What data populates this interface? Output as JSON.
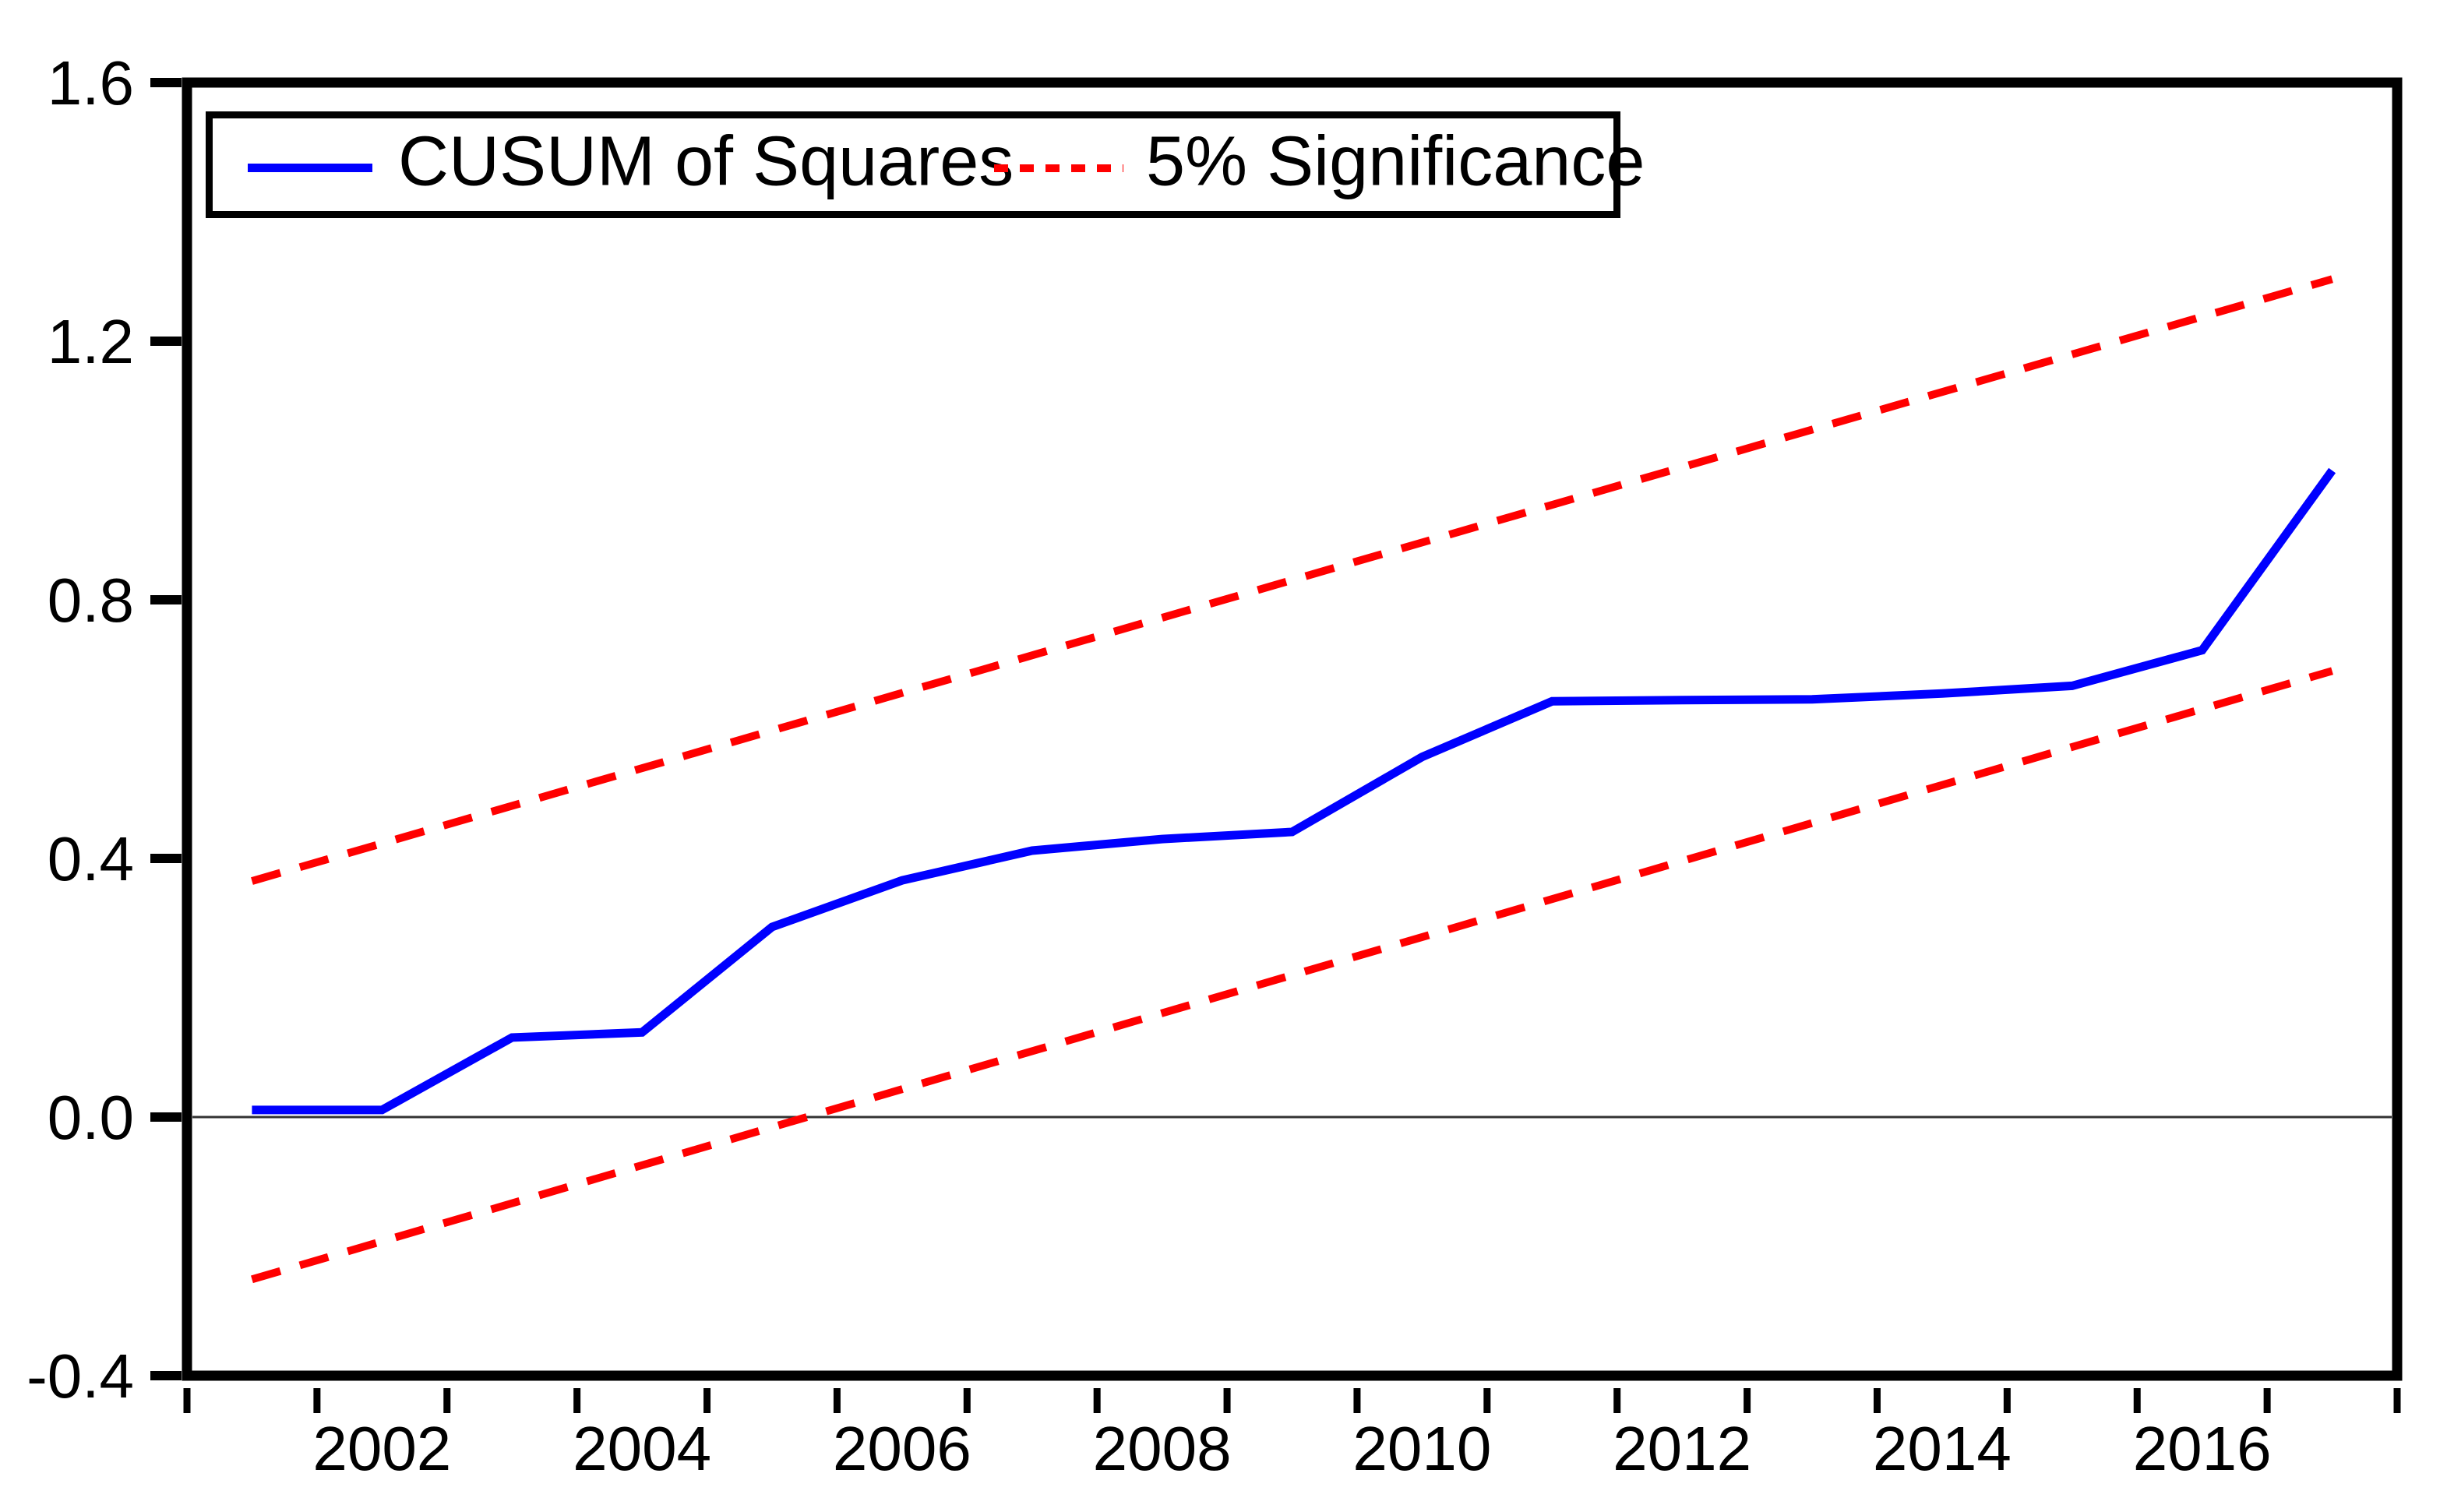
{
  "chart_data": {
    "type": "line",
    "title": "",
    "xlabel": "",
    "ylabel": "",
    "x": [
      2001,
      2002,
      2003,
      2004,
      2005,
      2006,
      2007,
      2008,
      2009,
      2010,
      2011,
      2012,
      2013,
      2014,
      2015,
      2016,
      2017
    ],
    "series": [
      {
        "name": "CUSUM of Squares",
        "color": "#0000ff",
        "style": "solid",
        "values": [
          0.011,
          0.011,
          0.123,
          0.131,
          0.294,
          0.366,
          0.412,
          0.43,
          0.441,
          0.557,
          0.643,
          0.645,
          0.646,
          0.655,
          0.667,
          0.722,
          1.0
        ]
      },
      {
        "name": "5% Significance",
        "color": "#ff0000",
        "style": "dashed",
        "lines": [
          {
            "x": [
              2001,
              2017
            ],
            "y": [
              -0.251,
              0.69
            ]
          },
          {
            "x": [
              2001,
              2017
            ],
            "y": [
              0.365,
              1.296
            ]
          }
        ]
      }
    ],
    "ylim": [
      -0.4,
      1.6
    ],
    "yticks": [
      -0.4,
      0.0,
      0.4,
      0.8,
      1.2,
      1.6
    ],
    "ytick_labels": [
      "-0.4",
      "0.0",
      "0.4",
      "0.8",
      "1.2",
      "1.6"
    ],
    "xtick_boundaries": [
      2001,
      2002,
      2003,
      2004,
      2005,
      2006,
      2007,
      2008,
      2009,
      2010,
      2011,
      2012,
      2013,
      2014,
      2015,
      2016,
      2017,
      2018
    ],
    "xtick_label_years": [
      "2002",
      "2004",
      "2006",
      "2008",
      "2010",
      "2012",
      "2014",
      "2016"
    ],
    "zero_line": true,
    "grid": false,
    "legend_position": "top-left",
    "colors": {
      "cusum_line": "#0000ff",
      "significance_line": "#ff0000",
      "axis_frame": "#000000",
      "zero_line": "#333333",
      "background": "#ffffff",
      "text": "#000000"
    }
  },
  "legend": {
    "series1_label": "CUSUM of Squares",
    "series2_label": "5% Significance"
  }
}
